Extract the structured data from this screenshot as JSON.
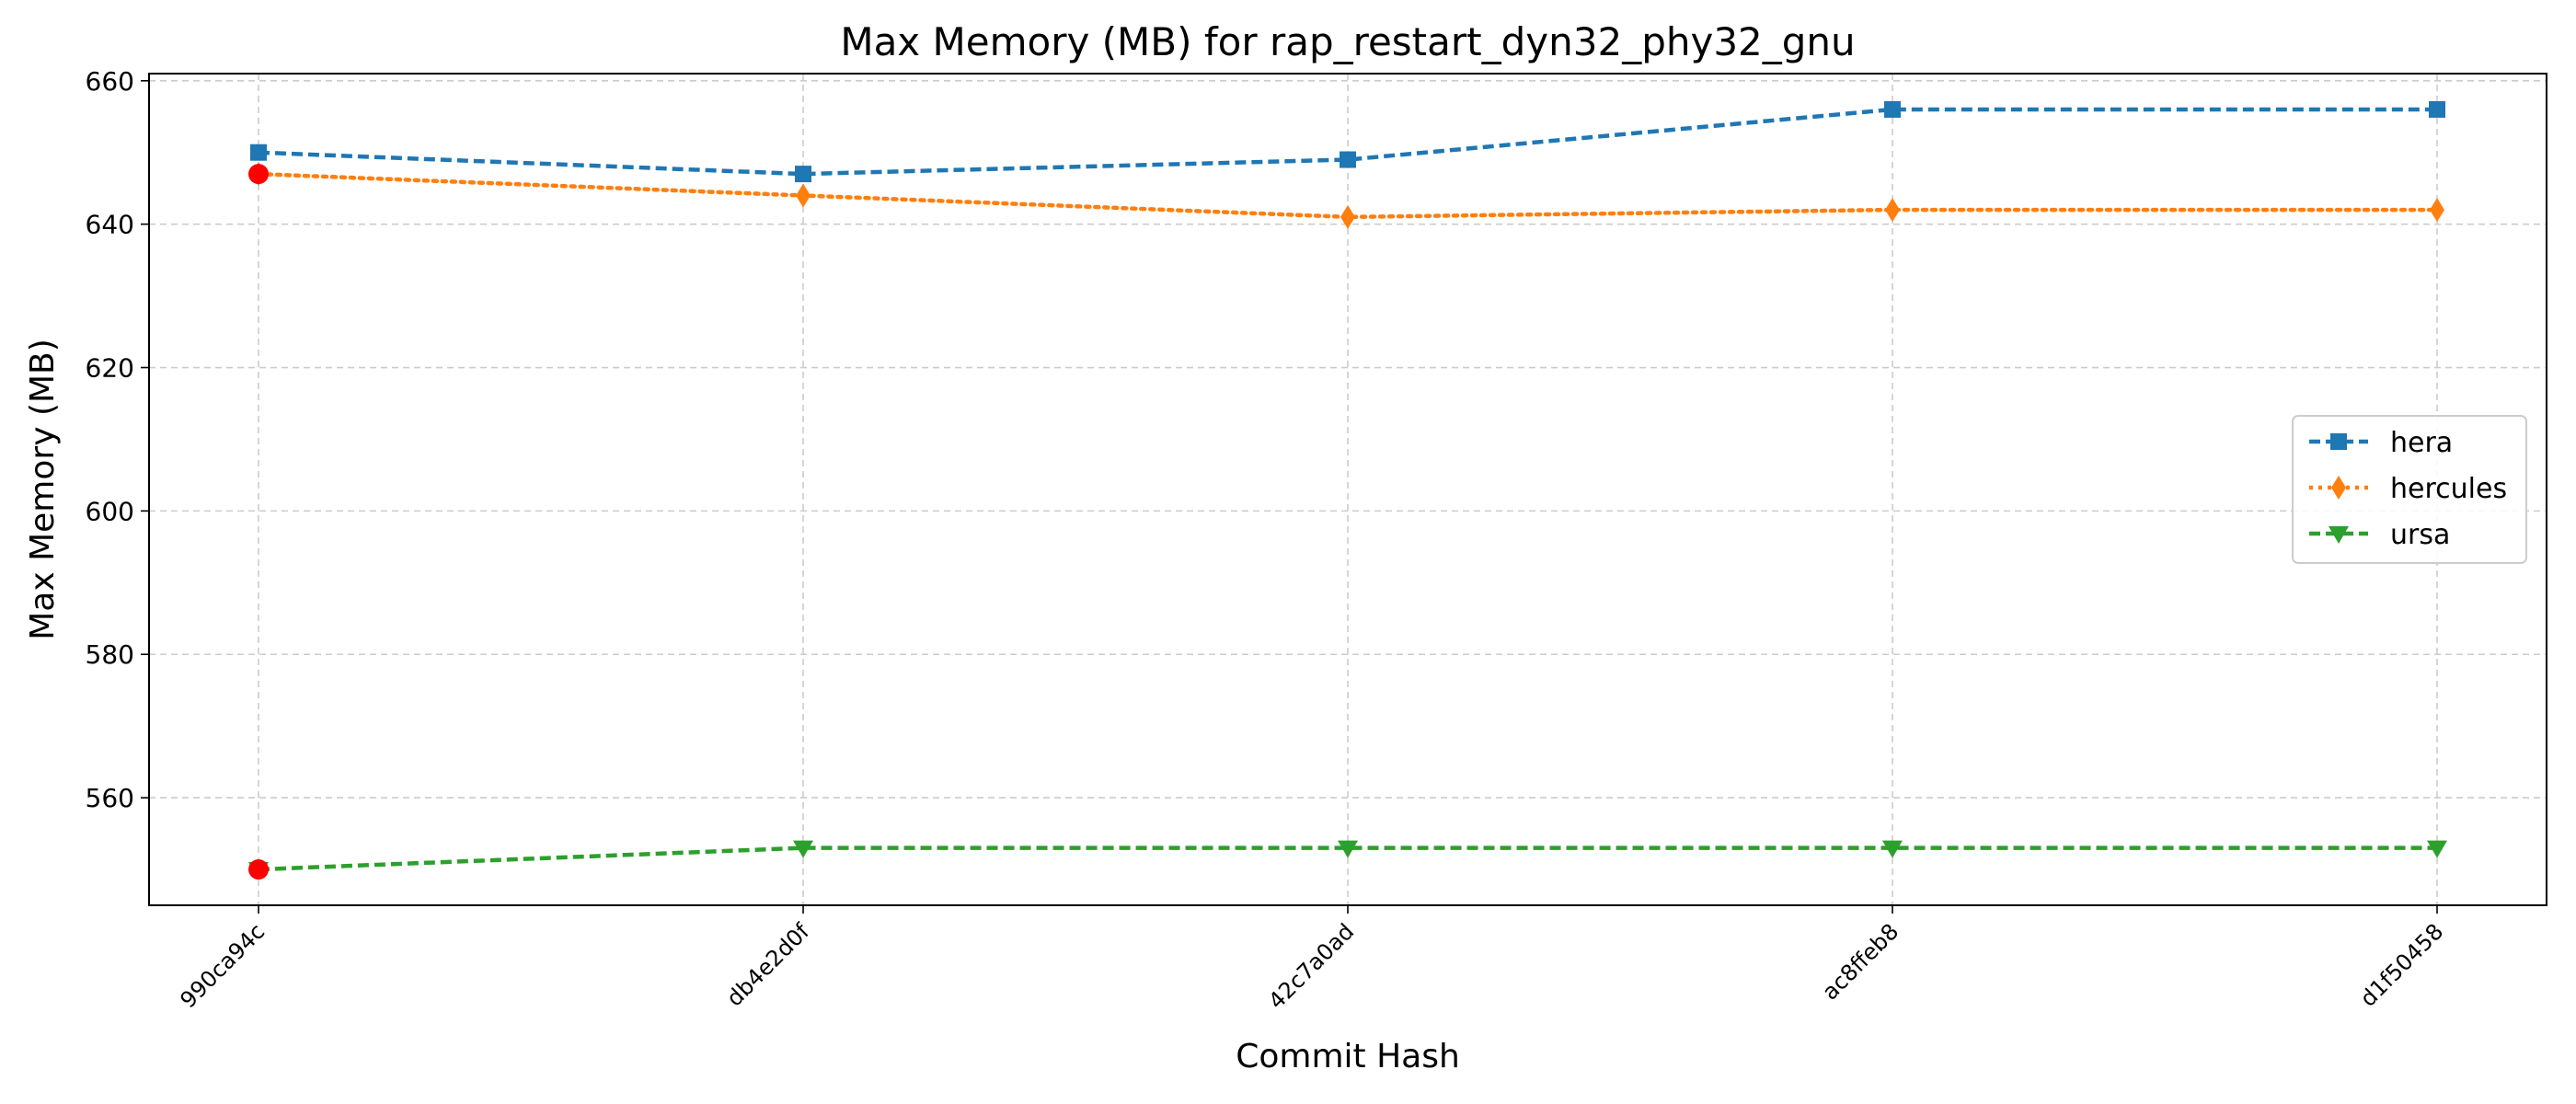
{
  "chart_data": {
    "type": "line",
    "title": "Max Memory (MB) for rap_restart_dyn32_phy32_gnu",
    "xlabel": "Commit Hash",
    "ylabel": "Max Memory (MB)",
    "categories": [
      "990ca94c",
      "db4e2d0f",
      "42c7a0ad",
      "ac8ffeb8",
      "d1f50458"
    ],
    "ylim": [
      545,
      661
    ],
    "yticks": [
      560,
      580,
      600,
      620,
      640,
      660
    ],
    "grid": true,
    "legend_position": "center-right",
    "series": [
      {
        "name": "hera",
        "values": [
          650,
          647,
          649,
          656,
          656
        ],
        "color": "#1f77b4",
        "marker": "square",
        "line_style": "dashed"
      },
      {
        "name": "hercules",
        "values": [
          647,
          644,
          641,
          642,
          642
        ],
        "color": "#ff7f0e",
        "marker": "thin-diamond",
        "line_style": "dotted"
      },
      {
        "name": "ursa",
        "values": [
          550,
          553,
          553,
          553,
          553
        ],
        "color": "#2ca02c",
        "marker": "triangle-down",
        "line_style": "dashed"
      }
    ],
    "highlighted_points": [
      {
        "series": "hercules",
        "category": "990ca94c",
        "value": 647,
        "color": "#ff0000"
      },
      {
        "series": "ursa",
        "category": "990ca94c",
        "value": 550,
        "color": "#ff0000"
      }
    ]
  }
}
